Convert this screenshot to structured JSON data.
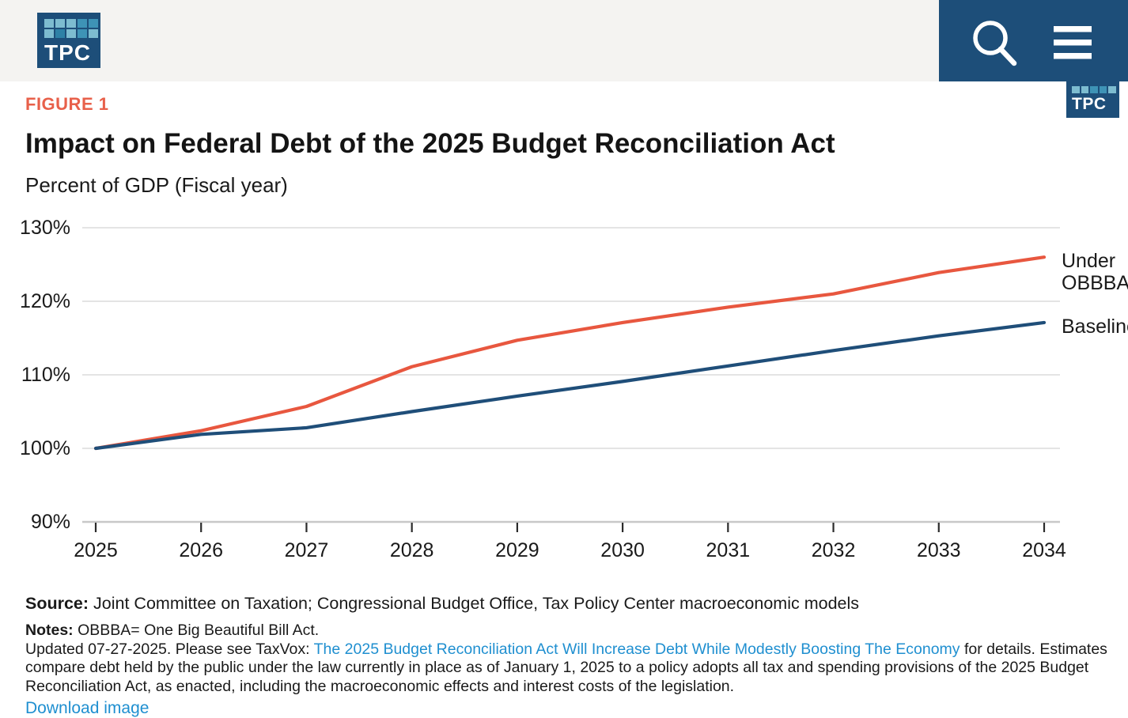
{
  "header": {
    "logo_text": "TPC",
    "brand_blue": "#1d4e79",
    "accent_orange": "#e8604a"
  },
  "figure": {
    "label": "FIGURE 1",
    "title": "Impact on Federal Debt of the 2025 Budget Reconciliation Act",
    "subtitle": "Percent of GDP (Fiscal year)"
  },
  "chart_data": {
    "type": "line",
    "title": "Impact on Federal Debt of the 2025 Budget Reconciliation Act",
    "subtitle": "Percent of GDP (Fiscal year)",
    "xlabel": "Fiscal year",
    "ylabel": "Percent of GDP",
    "x": [
      2025,
      2026,
      2027,
      2028,
      2029,
      2030,
      2031,
      2032,
      2033,
      2034
    ],
    "series": [
      {
        "name": "Under OBBBA",
        "label_lines": [
          "Under",
          "OBBBA"
        ],
        "color": "#e8573f",
        "values": [
          100.0,
          102.4,
          105.7,
          111.1,
          114.7,
          117.1,
          119.2,
          121.0,
          123.9,
          126.0
        ]
      },
      {
        "name": "Baseline",
        "label_lines": [
          "Baseline"
        ],
        "color": "#1f4e79",
        "values": [
          100.0,
          101.9,
          102.8,
          105.0,
          107.1,
          109.1,
          111.2,
          113.3,
          115.3,
          117.1
        ]
      }
    ],
    "ylim": [
      90,
      130
    ],
    "yticks": [
      90,
      100,
      110,
      120,
      130
    ],
    "ytick_suffix": "%",
    "grid": true,
    "legend_position": "right"
  },
  "footer": {
    "source_label": "Source:",
    "source_text": " Joint Committee on Taxation; Congressional Budget Office, Tax Policy Center macroeconomic models",
    "notes_label": "Notes:",
    "notes_line1": " OBBBA= One Big Beautiful Bill Act.",
    "updated_prefix": "Updated 07-27-2025. Please see TaxVox: ",
    "link_text": "The 2025 Budget Reconciliation Act Will Increase Debt While Modestly Boosting The Economy",
    "after_link": " for details. Estimates compare debt held by the public under the law currently in place as of January 1, 2025 to a policy adopts all tax and spending provisions of the 2025 Budget Reconciliation Act, as enacted, including the macroeconomic effects and interest costs of the legislation.",
    "download_link": "Download image"
  }
}
